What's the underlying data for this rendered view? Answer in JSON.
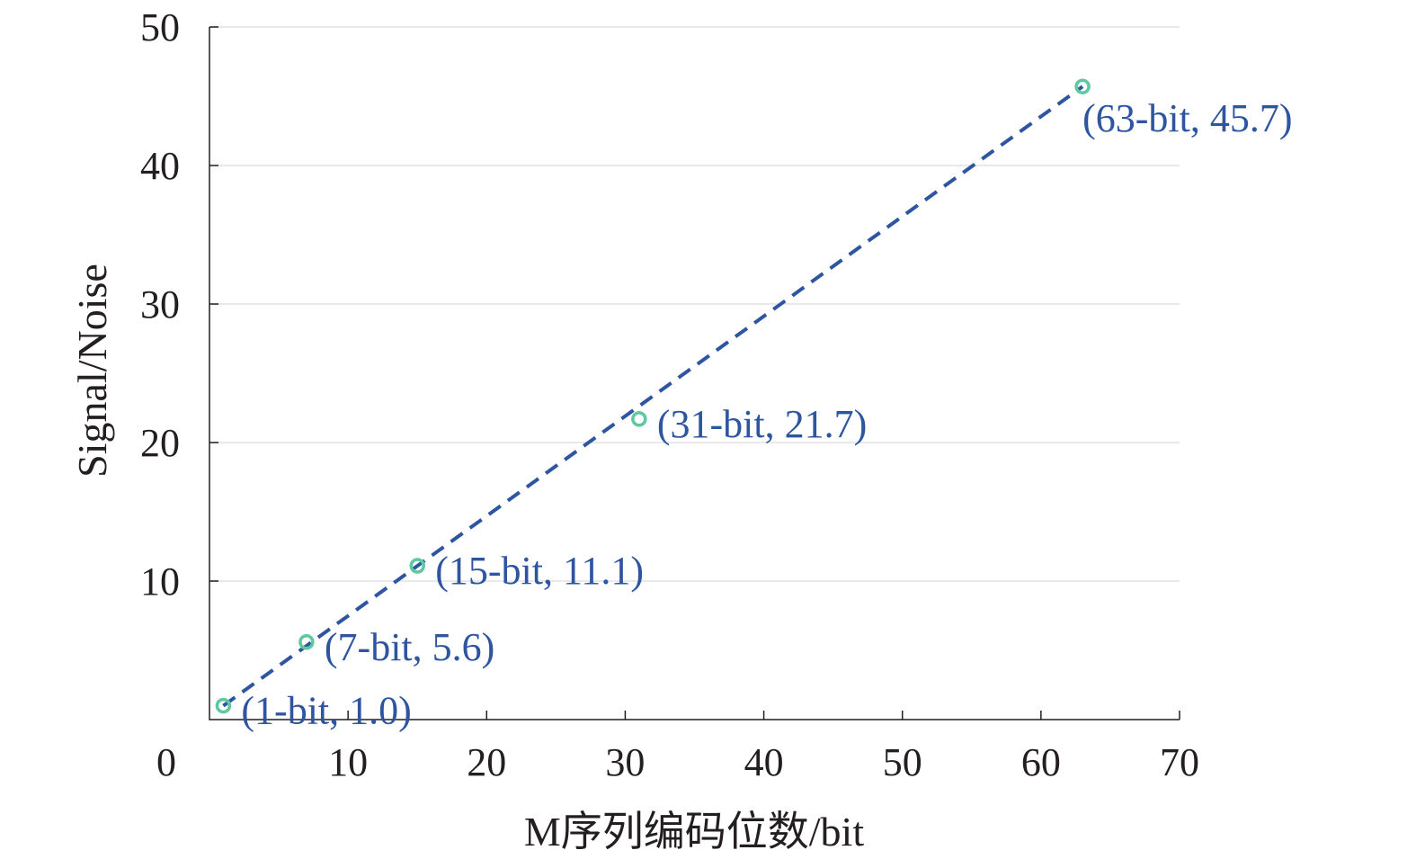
{
  "chart_data": {
    "type": "scatter",
    "xlabel": "M序列编码位数/bit",
    "ylabel": "Signal/Noise",
    "xlim": [
      0,
      70
    ],
    "ylim": [
      0,
      50
    ],
    "x_ticks": [
      0,
      10,
      20,
      30,
      40,
      50,
      60,
      70
    ],
    "y_ticks": [
      10,
      20,
      30,
      40,
      50
    ],
    "x_tick_labels": [
      "0",
      "10",
      "20",
      "30",
      "40",
      "50",
      "60",
      "70"
    ],
    "y_tick_labels": [
      "10",
      "20",
      "30",
      "40",
      "50"
    ],
    "grid": "horizontal",
    "points": [
      {
        "x": 1,
        "y": 1.0,
        "label": "(1-bit, 1.0)"
      },
      {
        "x": 7,
        "y": 5.6,
        "label": "(7-bit, 5.6)"
      },
      {
        "x": 15,
        "y": 11.1,
        "label": "(15-bit, 11.1)"
      },
      {
        "x": 31,
        "y": 21.7,
        "label": "(31-bit, 21.7)"
      },
      {
        "x": 63,
        "y": 45.7,
        "label": "(63-bit, 45.7)"
      }
    ],
    "fit_line": {
      "x": [
        1,
        63
      ],
      "y": [
        1.0,
        45.7
      ],
      "style": "dashed"
    },
    "colors": {
      "marker": "#5ec8a0",
      "line": "#2e55a0",
      "label": "#2e55a0"
    }
  }
}
